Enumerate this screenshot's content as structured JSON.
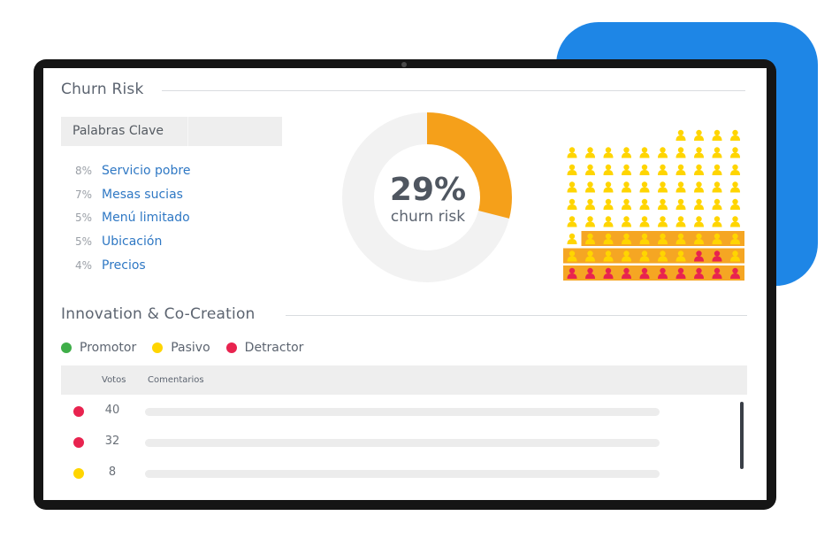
{
  "churn": {
    "title": "Churn Risk",
    "keywords_header": "Palabras Clave",
    "keywords": [
      {
        "pct": "8%",
        "word": "Servicio pobre"
      },
      {
        "pct": "7%",
        "word": "Mesas sucias"
      },
      {
        "pct": "5%",
        "word": "Menú limitado"
      },
      {
        "pct": "5%",
        "word": "Ubicación"
      },
      {
        "pct": "4%",
        "word": "Precios"
      }
    ],
    "gauge_value": "29%",
    "gauge_label": "churn risk",
    "gauge_fraction": 0.29
  },
  "innovation": {
    "title": "Innovation & Co-Creation",
    "legend": [
      {
        "label": "Promotor",
        "color": "#3fae49"
      },
      {
        "label": "Pasivo",
        "color": "#ffd500"
      },
      {
        "label": "Detractor",
        "color": "#e8234f"
      }
    ],
    "columns": {
      "votes": "Votos",
      "comments": "Comentarios"
    },
    "rows": [
      {
        "votes": "40",
        "type": "Detractor",
        "color": "#e8234f"
      },
      {
        "votes": "32",
        "type": "Detractor",
        "color": "#e8234f"
      },
      {
        "votes": "8",
        "type": "Pasivo",
        "color": "#ffd500"
      }
    ]
  },
  "colors": {
    "accent_blue": "#1e86e6",
    "gauge_orange": "#f5a01a",
    "gauge_track": "#f2f2f2",
    "passive_yellow": "#ffd500",
    "detractor_red": "#e8234f",
    "highlight_orange": "#f5a623",
    "link_blue": "#2f78c4"
  }
}
